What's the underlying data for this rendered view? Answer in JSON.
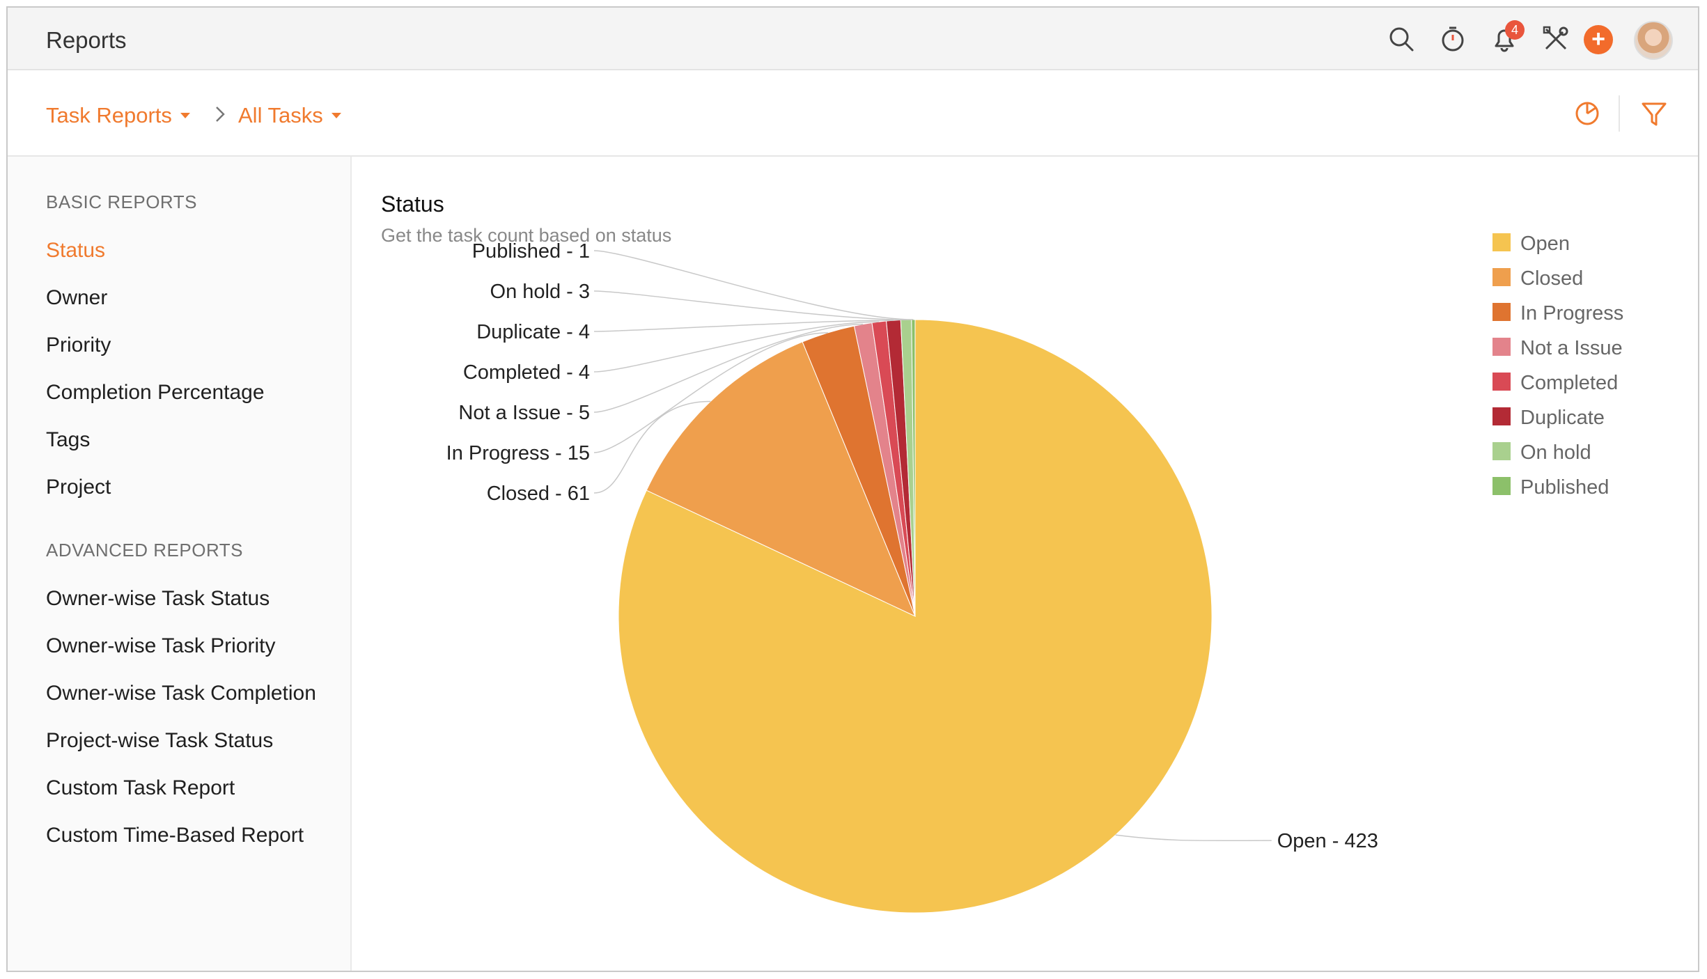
{
  "app": {
    "title": "Reports"
  },
  "topbar": {
    "icons": [
      "search-icon",
      "timer-icon",
      "bell-icon",
      "tools-icon",
      "add-icon",
      "avatar"
    ],
    "notification_count": "4",
    "add_label": "+"
  },
  "breadcrumb": {
    "first": "Task Reports",
    "second": "All Tasks"
  },
  "sidebar": {
    "basic_header": "BASIC REPORTS",
    "basic_items": [
      {
        "label": "Status",
        "active": true
      },
      {
        "label": "Owner"
      },
      {
        "label": "Priority"
      },
      {
        "label": "Completion Percentage"
      },
      {
        "label": "Tags"
      },
      {
        "label": "Project"
      }
    ],
    "advanced_header": "ADVANCED REPORTS",
    "advanced_items": [
      {
        "label": "Owner-wise Task Status"
      },
      {
        "label": "Owner-wise Task Priority"
      },
      {
        "label": "Owner-wise Task Completion"
      },
      {
        "label": "Project-wise Task Status"
      },
      {
        "label": "Custom Task Report"
      },
      {
        "label": "Custom Time-Based Report"
      }
    ]
  },
  "main": {
    "title": "Status",
    "subtitle": "Get the task count based on status"
  },
  "chart_data": {
    "type": "pie",
    "title": "Status",
    "slices": [
      {
        "name": "Open",
        "value": 423,
        "label": "Open - 423",
        "color": "#f5c450"
      },
      {
        "name": "Closed",
        "value": 61,
        "label": "Closed - 61",
        "color": "#ef9f4d"
      },
      {
        "name": "In Progress",
        "value": 15,
        "label": "In Progress - 15",
        "color": "#df7430"
      },
      {
        "name": "Not a Issue",
        "value": 5,
        "label": "Not a Issue - 5",
        "color": "#e3838b"
      },
      {
        "name": "Completed",
        "value": 4,
        "label": "Completed - 4",
        "color": "#d94a55"
      },
      {
        "name": "Duplicate",
        "value": 4,
        "label": "Duplicate - 4",
        "color": "#b32a35"
      },
      {
        "name": "On hold",
        "value": 3,
        "label": "On hold - 3",
        "color": "#a9d08e"
      },
      {
        "name": "Published",
        "value": 1,
        "label": "Published - 1",
        "color": "#8cc06a"
      }
    ],
    "legend_position": "top-right"
  },
  "colors": {
    "accent": "#f07a2e",
    "badge": "#e9553c"
  }
}
